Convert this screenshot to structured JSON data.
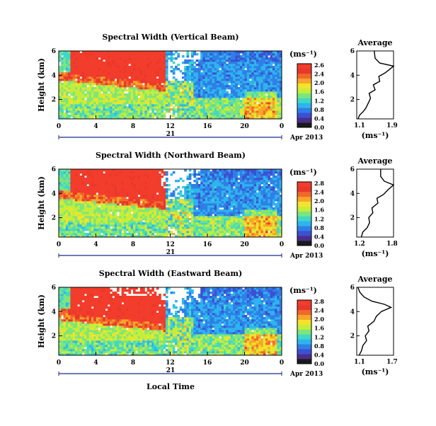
{
  "chart_data": [
    {
      "type": "heatmap",
      "title": "Spectral Width (Vertical Beam)",
      "ylabel": "Height (km)",
      "yticks": [
        "2",
        "4",
        "6"
      ],
      "ylim": [
        0.4,
        6
      ],
      "xticks": [
        "0",
        "4",
        "8",
        "12",
        "16",
        "20",
        "0"
      ],
      "xlim": [
        0,
        24
      ],
      "date_day": "21",
      "date_month": "Apr 2013",
      "colorbar_unit": "(ms⁻¹)",
      "colorbar_ticks": [
        "2.6",
        "2.4",
        "2.0",
        "1.6",
        "1.2",
        "0.8",
        "0.4",
        "0.0"
      ],
      "average": {
        "title": "Average",
        "xlabel": "(ms⁻¹)",
        "xticks": [
          "1.1",
          "1.9"
        ],
        "xlim": [
          1.1,
          1.9
        ],
        "yticks": [
          "2",
          "4",
          "6"
        ],
        "profile": [
          [
            1.13,
            0.4
          ],
          [
            1.16,
            0.7
          ],
          [
            1.24,
            1.0
          ],
          [
            1.3,
            1.3
          ],
          [
            1.35,
            1.7
          ],
          [
            1.4,
            2.1
          ],
          [
            1.37,
            2.5
          ],
          [
            1.5,
            2.8
          ],
          [
            1.46,
            3.2
          ],
          [
            1.6,
            3.5
          ],
          [
            1.58,
            3.9
          ],
          [
            1.72,
            4.2
          ],
          [
            1.82,
            4.5
          ],
          [
            1.9,
            4.75
          ],
          [
            1.6,
            5.0
          ],
          [
            1.5,
            5.4
          ],
          [
            1.48,
            6.0
          ]
        ]
      }
    },
    {
      "type": "heatmap",
      "title": "Spectral Width (Northward Beam)",
      "ylabel": "Height (km)",
      "yticks": [
        "2",
        "4",
        "6"
      ],
      "ylim": [
        0.4,
        6
      ],
      "xticks": [
        "0",
        "4",
        "8",
        "12",
        "16",
        "20",
        "0"
      ],
      "xlim": [
        0,
        24
      ],
      "date_day": "21",
      "date_month": "Apr 2013",
      "colorbar_unit": "(ms⁻¹)",
      "colorbar_ticks": [
        "2.8",
        "2.4",
        "2.0",
        "1.6",
        "1.2",
        "0.8",
        "0.4",
        "0.0"
      ],
      "average": {
        "title": "Average",
        "xlabel": "(ms⁻¹)",
        "xticks": [
          "1.2",
          "1.8"
        ],
        "xlim": [
          1.1,
          1.9
        ],
        "yticks": [
          "2",
          "4",
          "6"
        ],
        "profile": [
          [
            1.2,
            0.4
          ],
          [
            1.23,
            0.8
          ],
          [
            1.33,
            1.2
          ],
          [
            1.38,
            1.6
          ],
          [
            1.36,
            2.0
          ],
          [
            1.45,
            2.4
          ],
          [
            1.43,
            2.8
          ],
          [
            1.56,
            3.2
          ],
          [
            1.54,
            3.6
          ],
          [
            1.68,
            3.9
          ],
          [
            1.78,
            4.3
          ],
          [
            1.9,
            4.7
          ],
          [
            1.7,
            5.0
          ],
          [
            1.62,
            5.4
          ],
          [
            1.62,
            6.0
          ]
        ]
      }
    },
    {
      "type": "heatmap",
      "title": "Spectral Width (Eastward Beam)",
      "ylabel": "Height (km)",
      "yticks": [
        "2",
        "4",
        "6"
      ],
      "ylim": [
        0.4,
        6
      ],
      "xticks": [
        "0",
        "4",
        "8",
        "12",
        "16",
        "20",
        "0"
      ],
      "xlim": [
        0,
        24
      ],
      "date_day": "21",
      "date_month": "Apr 2013",
      "xlabel": "Local Time",
      "colorbar_unit": "(ms⁻¹)",
      "colorbar_ticks": [
        "2.8",
        "2.4",
        "2.0",
        "1.6",
        "1.2",
        "0.8",
        "0.4",
        "0.0"
      ],
      "average": {
        "title": "Average",
        "xlabel": "(ms⁻¹)",
        "xticks": [
          "1.1",
          "1.7"
        ],
        "xlim": [
          1.1,
          1.7
        ],
        "yticks": [
          "2",
          "4",
          "6"
        ],
        "profile": [
          [
            1.14,
            0.4
          ],
          [
            1.18,
            0.8
          ],
          [
            1.2,
            1.2
          ],
          [
            1.26,
            1.6
          ],
          [
            1.24,
            2.0
          ],
          [
            1.3,
            2.4
          ],
          [
            1.28,
            2.8
          ],
          [
            1.38,
            3.2
          ],
          [
            1.42,
            3.6
          ],
          [
            1.5,
            4.0
          ],
          [
            1.66,
            4.35
          ],
          [
            1.55,
            4.6
          ],
          [
            1.35,
            4.85
          ],
          [
            1.22,
            5.2
          ],
          [
            1.15,
            5.6
          ],
          [
            1.12,
            6.0
          ]
        ]
      }
    }
  ],
  "colors": {
    "palette": [
      "#1a1a1a",
      "#4b2d8c",
      "#3c50d2",
      "#2f7fe6",
      "#2fb4ee",
      "#3fd8c8",
      "#7ee57a",
      "#c5ee3a",
      "#f6e22a",
      "#f6a62a",
      "#f2682a",
      "#e8382a",
      "#f23c2c"
    ]
  }
}
